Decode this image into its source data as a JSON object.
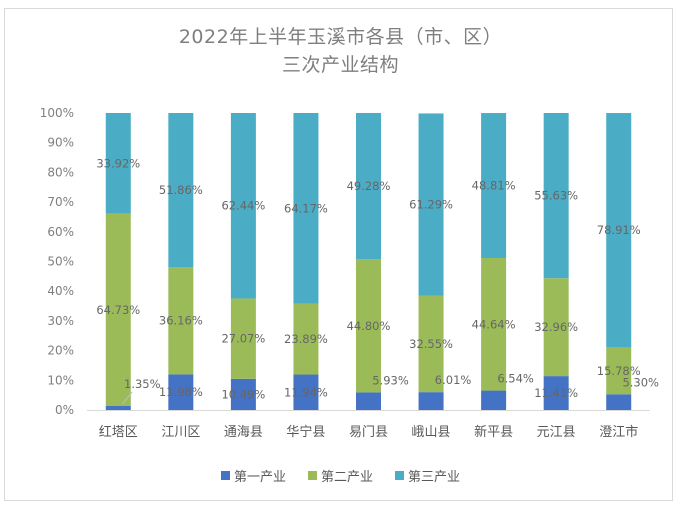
{
  "chart_data": {
    "type": "bar",
    "stacked": true,
    "title_line1": "2022年上半年玉溪市各县（市、区）",
    "title_line2": "三次产业结构",
    "categories": [
      "红塔区",
      "江川区",
      "通海县",
      "华宁县",
      "易门县",
      "峨山县",
      "新平县",
      "元江县",
      "澄江市"
    ],
    "series": [
      {
        "name": "第一产业",
        "color": "#4472c4",
        "values": [
          1.35,
          11.98,
          10.49,
          11.94,
          5.93,
          6.01,
          6.54,
          11.41,
          5.3
        ],
        "labels": [
          "1.35%",
          "11.98%",
          "10.49%",
          "11.94%",
          "5.93%",
          "6.01%",
          "6.54%",
          "11.41%",
          "5.30%"
        ]
      },
      {
        "name": "第二产业",
        "color": "#9bbb59",
        "values": [
          64.73,
          36.16,
          27.07,
          23.89,
          44.8,
          32.55,
          44.64,
          32.96,
          15.78
        ],
        "labels": [
          "64.73%",
          "36.16%",
          "27.07%",
          "23.89%",
          "44.80%",
          "32.55%",
          "44.64%",
          "32.96%",
          "15.78%"
        ]
      },
      {
        "name": "第三产业",
        "color": "#4bacc6",
        "values": [
          33.92,
          51.86,
          62.44,
          64.17,
          49.28,
          61.29,
          48.81,
          55.63,
          78.91
        ],
        "labels": [
          "33.92%",
          "51.86%",
          "62.44%",
          "64.17%",
          "49.28%",
          "61.29%",
          "48.81%",
          "55.63%",
          "78.91%"
        ]
      }
    ],
    "y_ticks": [
      "0%",
      "10%",
      "20%",
      "30%",
      "40%",
      "50%",
      "60%",
      "70%",
      "80%",
      "90%",
      "100%"
    ],
    "ylim": [
      0,
      100
    ],
    "legend_position": "bottom"
  }
}
